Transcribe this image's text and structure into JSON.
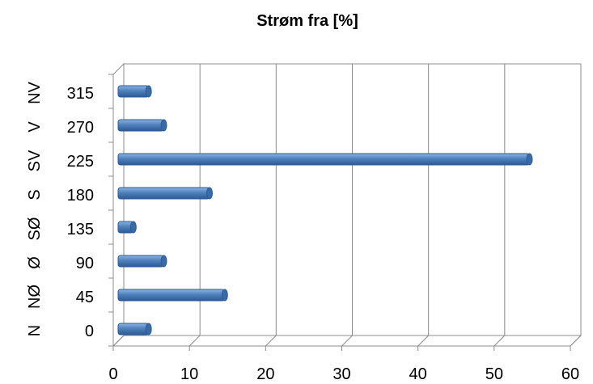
{
  "chart_data": {
    "type": "bar",
    "orientation": "horizontal",
    "title": "Strøm fra [%]",
    "categories": [
      {
        "direction": "N",
        "degrees": "0"
      },
      {
        "direction": "NØ",
        "degrees": "45"
      },
      {
        "direction": "Ø",
        "degrees": "90"
      },
      {
        "direction": "SØ",
        "degrees": "135"
      },
      {
        "direction": "S",
        "degrees": "180"
      },
      {
        "direction": "SV",
        "degrees": "225"
      },
      {
        "direction": "V",
        "degrees": "270"
      },
      {
        "direction": "NV",
        "degrees": "315"
      }
    ],
    "values": [
      4,
      14,
      6,
      2,
      12,
      54,
      6,
      4
    ],
    "xlim": [
      0,
      60
    ],
    "xticks": [
      "0",
      "10",
      "20",
      "30",
      "40",
      "50",
      "60"
    ],
    "grid": true,
    "legend": "none",
    "bar_color": "#4F81BD"
  }
}
